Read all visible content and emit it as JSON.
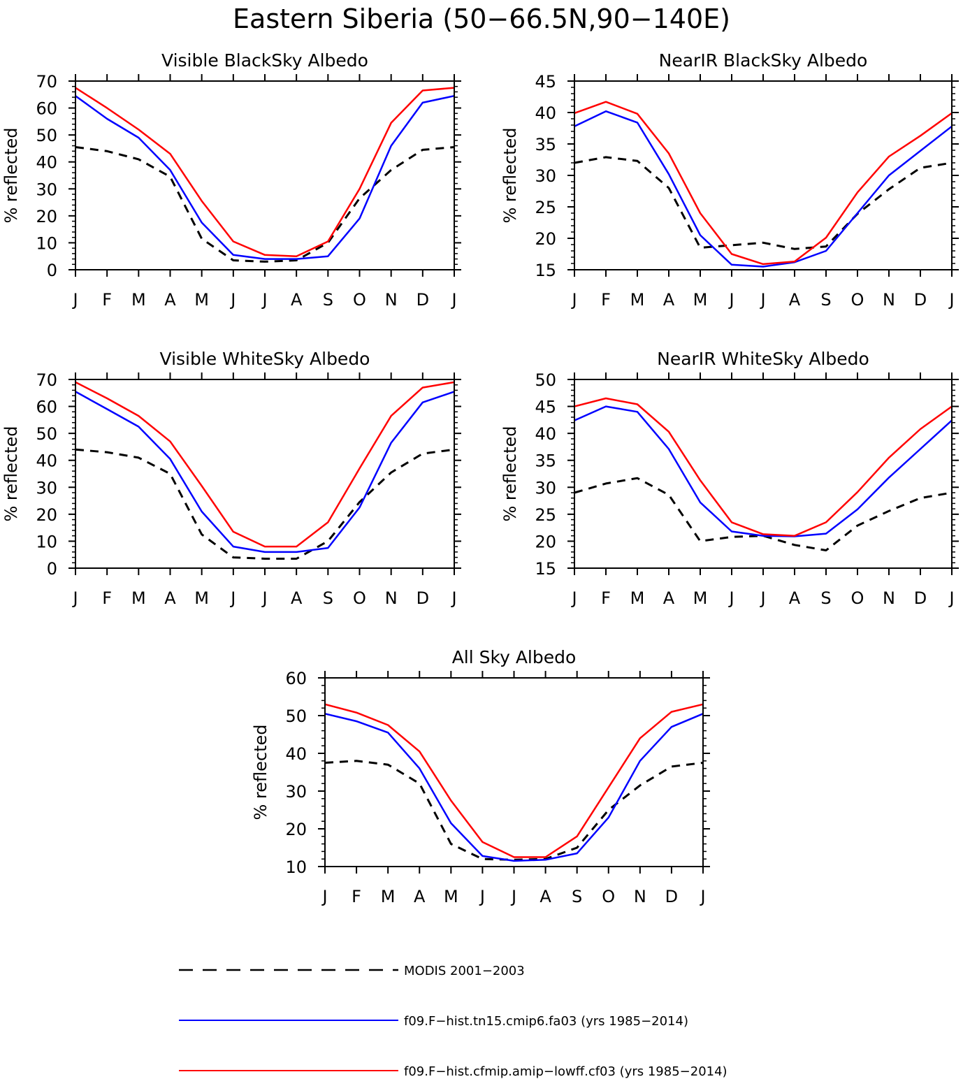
{
  "title": "Eastern Siberia (50−66.5N,90−140E)",
  "colors": {
    "modis": "#000000",
    "fa03": "#0000ff",
    "cf03": "#ff0000"
  },
  "legend": [
    {
      "key": "modis",
      "label": "MODIS 2001−2003",
      "style": "dashed",
      "color": "#000000"
    },
    {
      "key": "fa03",
      "label": "f09.F−hist.tn15.cmip6.fa03 (yrs 1985−2014)",
      "style": "solid",
      "color": "#0000ff"
    },
    {
      "key": "cf03",
      "label": "f09.F−hist.cfmip.amip−lowff.cf03 (yrs 1985−2014)",
      "style": "solid",
      "color": "#ff0000"
    }
  ],
  "chart_data": [
    {
      "type": "line",
      "title": "Visible BlackSky Albedo",
      "ylabel": "% reflected",
      "categories": [
        "J",
        "F",
        "M",
        "A",
        "M",
        "J",
        "J",
        "A",
        "S",
        "O",
        "N",
        "D",
        "J"
      ],
      "ylim": [
        0,
        70
      ],
      "yticks": [
        0,
        10,
        20,
        30,
        40,
        50,
        60,
        70
      ],
      "grid": false,
      "series": [
        {
          "name": "MODIS 2001−2003",
          "key": "modis",
          "values": [
            45.5,
            44,
            41,
            34.5,
            11.5,
            3.5,
            3,
            3.5,
            10,
            26.5,
            37,
            44.5,
            45.5
          ]
        },
        {
          "name": "f09.F−hist.tn15.cmip6.fa03 (yrs 1985−2014)",
          "key": "fa03",
          "values": [
            64.5,
            56,
            49,
            37,
            17.5,
            5.5,
            4,
            4,
            5,
            19,
            46,
            62,
            64.5
          ]
        },
        {
          "name": "f09.F−hist.cfmip.amip−lowff.cf03 (yrs 1985−2014)",
          "key": "cf03",
          "values": [
            67.5,
            60,
            52,
            43,
            25.5,
            10.5,
            5.5,
            5,
            10.5,
            30,
            54.5,
            66.5,
            67.5
          ]
        }
      ]
    },
    {
      "type": "line",
      "title": "NearIR BlackSky Albedo",
      "ylabel": "% reflected",
      "categories": [
        "J",
        "F",
        "M",
        "A",
        "M",
        "J",
        "J",
        "A",
        "S",
        "O",
        "N",
        "D",
        "J"
      ],
      "ylim": [
        15,
        45
      ],
      "yticks": [
        15,
        20,
        25,
        30,
        35,
        40,
        45
      ],
      "grid": false,
      "series": [
        {
          "name": "MODIS 2001−2003",
          "key": "modis",
          "values": [
            32,
            32.9,
            32.3,
            28,
            18.5,
            18.9,
            19.3,
            18.3,
            18.7,
            23.9,
            27.8,
            31.2,
            32
          ]
        },
        {
          "name": "f09.F−hist.tn15.cmip6.fa03 (yrs 1985−2014)",
          "key": "fa03",
          "values": [
            37.8,
            40.2,
            38.4,
            30.2,
            20.5,
            15.8,
            15.5,
            16.2,
            18,
            24,
            30,
            33.9,
            37.8
          ]
        },
        {
          "name": "f09.F−hist.cfmip.amip−lowff.cf03 (yrs 1985−2014)",
          "key": "cf03",
          "values": [
            39.9,
            41.7,
            39.8,
            33.5,
            24,
            17.5,
            15.9,
            16.3,
            20.1,
            27.3,
            33,
            36.3,
            39.9
          ]
        }
      ]
    },
    {
      "type": "line",
      "title": "Visible WhiteSky Albedo",
      "ylabel": "% reflected",
      "categories": [
        "J",
        "F",
        "M",
        "A",
        "M",
        "J",
        "J",
        "A",
        "S",
        "O",
        "N",
        "D",
        "J"
      ],
      "ylim": [
        0,
        70
      ],
      "yticks": [
        0,
        10,
        20,
        30,
        40,
        50,
        60,
        70
      ],
      "grid": false,
      "series": [
        {
          "name": "MODIS 2001−2003",
          "key": "modis",
          "values": [
            44,
            43,
            41,
            35,
            12.5,
            4,
            3.5,
            3.5,
            10,
            24.5,
            35.5,
            42.5,
            44
          ]
        },
        {
          "name": "f09.F−hist.tn15.cmip6.fa03 (yrs 1985−2014)",
          "key": "fa03",
          "values": [
            65.5,
            59,
            52.5,
            40.5,
            21,
            8,
            6,
            6,
            7.5,
            22.5,
            46.5,
            61.5,
            65.5
          ]
        },
        {
          "name": "f09.F−hist.cfmip.amip−lowff.cf03 (yrs 1985−2014)",
          "key": "cf03",
          "values": [
            69,
            63,
            56.5,
            47,
            30.5,
            13.5,
            8,
            8,
            17,
            37,
            56.5,
            67,
            69
          ]
        }
      ]
    },
    {
      "type": "line",
      "title": "NearIR WhiteSky Albedo",
      "ylabel": "% reflected",
      "categories": [
        "J",
        "F",
        "M",
        "A",
        "M",
        "J",
        "J",
        "A",
        "S",
        "O",
        "N",
        "D",
        "J"
      ],
      "ylim": [
        15,
        50
      ],
      "yticks": [
        15,
        20,
        25,
        30,
        35,
        40,
        45,
        50
      ],
      "grid": false,
      "series": [
        {
          "name": "MODIS 2001−2003",
          "key": "modis",
          "values": [
            29,
            30.7,
            31.7,
            28.6,
            20,
            20.8,
            21,
            19.3,
            18.3,
            22.9,
            25.6,
            28,
            29
          ]
        },
        {
          "name": "f09.F−hist.tn15.cmip6.fa03 (yrs 1985−2014)",
          "key": "fa03",
          "values": [
            42.4,
            45,
            44,
            37.1,
            27.2,
            21.8,
            21,
            20.9,
            21.4,
            25.9,
            31.8,
            37.1,
            42.4
          ]
        },
        {
          "name": "f09.F−hist.cfmip.amip−lowff.cf03 (yrs 1985−2014)",
          "key": "cf03",
          "values": [
            45,
            46.5,
            45.4,
            40.3,
            31.3,
            23.5,
            21.3,
            21,
            23.5,
            29.1,
            35.5,
            40.8,
            45
          ]
        }
      ]
    },
    {
      "type": "line",
      "title": "All Sky Albedo",
      "ylabel": "% reflected",
      "categories": [
        "J",
        "F",
        "M",
        "A",
        "M",
        "J",
        "J",
        "A",
        "S",
        "O",
        "N",
        "D",
        "J"
      ],
      "ylim": [
        10,
        60
      ],
      "yticks": [
        10,
        20,
        30,
        40,
        50,
        60
      ],
      "grid": false,
      "series": [
        {
          "name": "MODIS 2001−2003",
          "key": "modis",
          "values": [
            37.5,
            38,
            37,
            32,
            16,
            12,
            11.8,
            12,
            15,
            25,
            31.5,
            36.5,
            37.5
          ]
        },
        {
          "name": "f09.F−hist.tn15.cmip6.fa03 (yrs 1985−2014)",
          "key": "fa03",
          "values": [
            50.5,
            48.5,
            45.5,
            36,
            21.5,
            12.8,
            11.5,
            11.8,
            13.5,
            23,
            38,
            47,
            50.5
          ]
        },
        {
          "name": "f09.F−hist.cfmip.amip−lowff.cf03 (yrs 1985−2014)",
          "key": "cf03",
          "values": [
            53,
            50.8,
            47.5,
            40.5,
            27.5,
            16.5,
            12.5,
            12.5,
            18,
            31,
            44,
            51,
            53
          ]
        }
      ]
    }
  ]
}
